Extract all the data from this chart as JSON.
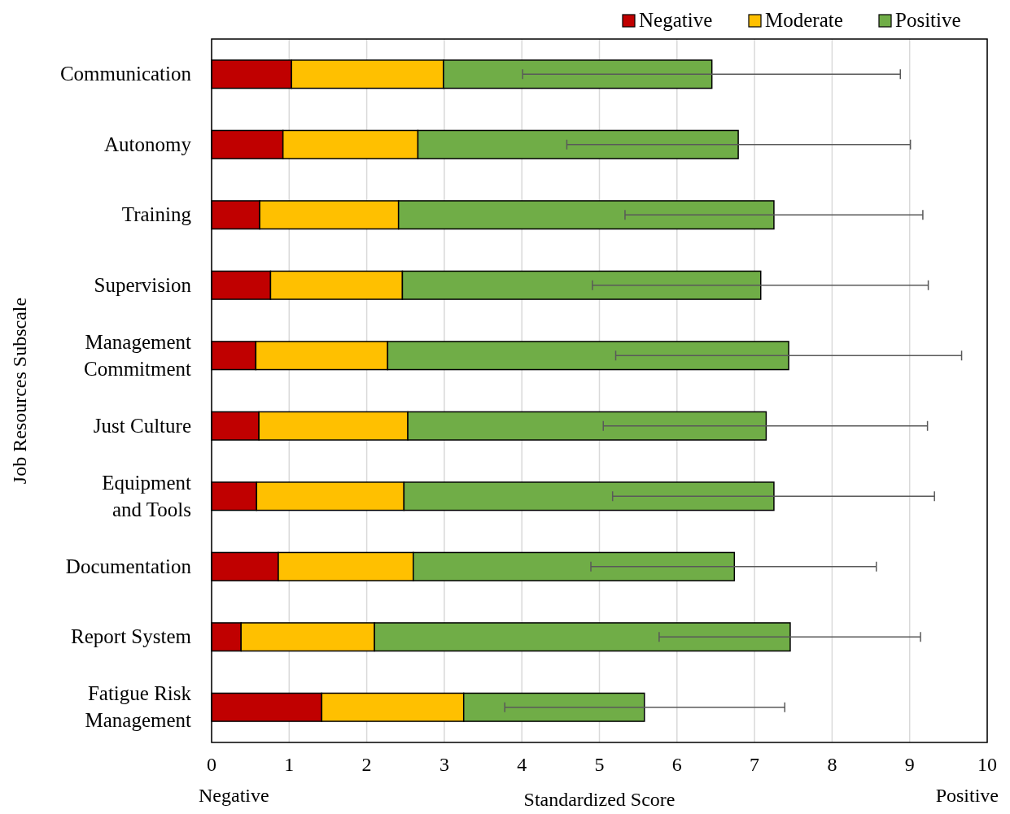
{
  "chart_data": {
    "type": "bar",
    "orientation": "horizontal",
    "stacked": true,
    "xlabel": "Standardized Score",
    "ylabel": "Job Resources Subscale",
    "categories": [
      "Communication",
      "Autonomy",
      "Training",
      "Supervision",
      "Management\nCommitment",
      "Just Culture",
      "Equipment\nand Tools",
      "Documentation",
      "Report System",
      "Fatigue Risk\nManagement"
    ],
    "series": [
      {
        "name": "Negative",
        "color": "#c00000",
        "values": [
          1.03,
          0.92,
          0.62,
          0.76,
          0.57,
          0.61,
          0.58,
          0.86,
          0.38,
          1.42
        ]
      },
      {
        "name": "Moderate",
        "color": "#ffc000",
        "values": [
          1.96,
          1.74,
          1.79,
          1.7,
          1.7,
          1.92,
          1.9,
          1.74,
          1.72,
          1.83
        ]
      },
      {
        "name": "Positive",
        "color": "#70ad47",
        "values": [
          3.46,
          4.13,
          4.84,
          4.62,
          5.17,
          4.62,
          4.77,
          4.14,
          5.36,
          2.33
        ],
        "errors": [
          [
            4.01,
            8.88
          ],
          [
            4.58,
            9.01
          ],
          [
            5.33,
            9.17
          ],
          [
            4.91,
            9.24
          ],
          [
            5.21,
            9.67
          ],
          [
            5.05,
            9.23
          ],
          [
            5.17,
            9.32
          ],
          [
            4.89,
            8.57
          ],
          [
            5.77,
            9.14
          ],
          [
            3.78,
            7.39
          ]
        ]
      }
    ],
    "xlim": [
      0,
      10
    ],
    "xticks": [
      0,
      1,
      2,
      3,
      4,
      5,
      6,
      7,
      8,
      9,
      10
    ],
    "grid": "x",
    "legend": "top right",
    "annotations": [
      "Negative",
      "Positive"
    ]
  }
}
